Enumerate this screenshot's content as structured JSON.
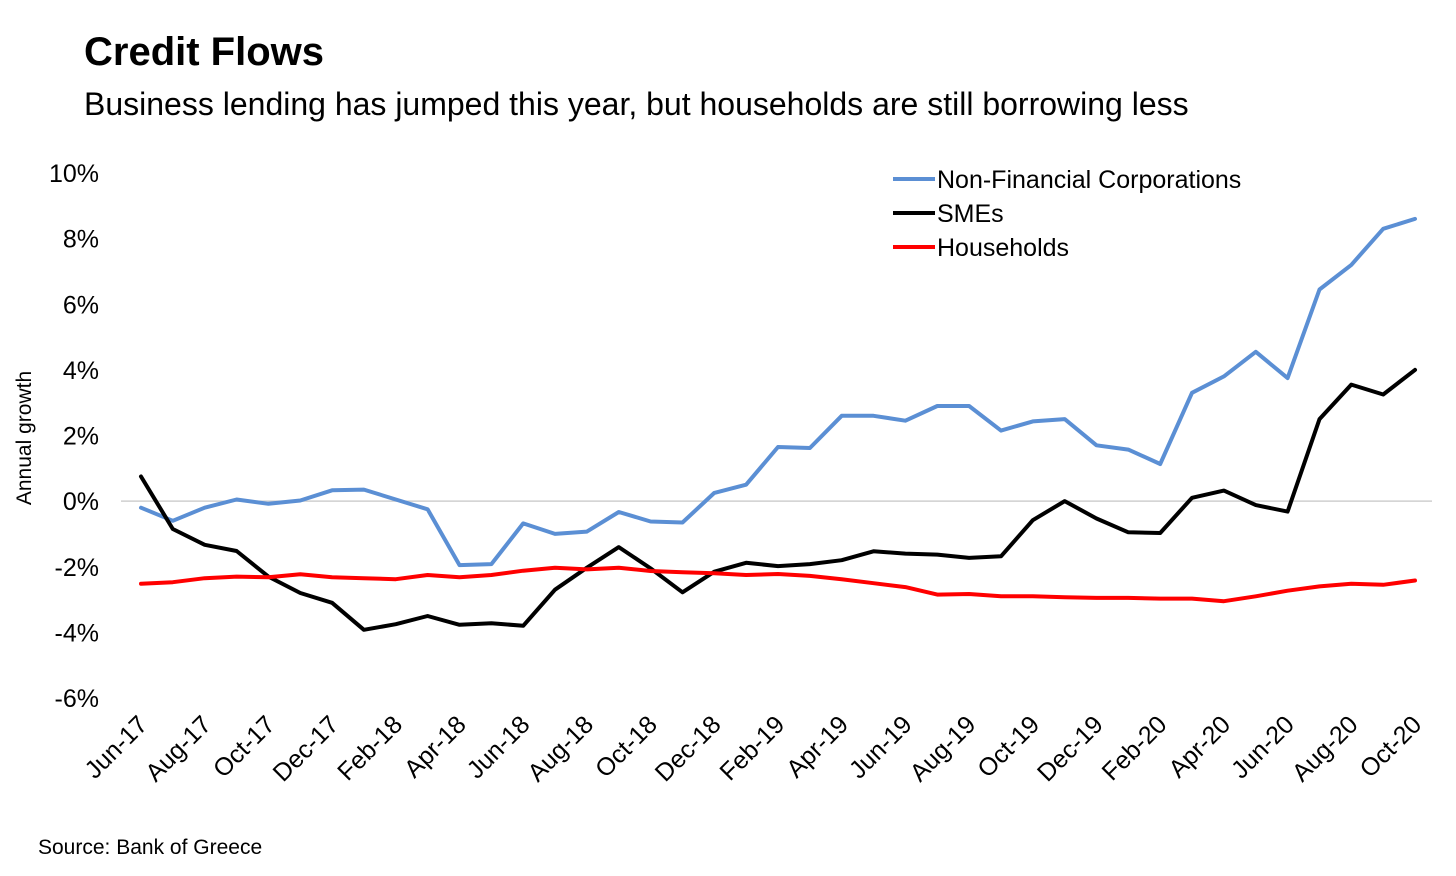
{
  "title": "Credit Flows",
  "subtitle": "Business lending has jumped this year, but households are still borrowing less",
  "source": "Source: Bank of Greece",
  "chart_data": {
    "type": "line",
    "ylabel": "Annual growth",
    "xlabel": "",
    "ylim": [
      -6,
      10
    ],
    "yticks": [
      -6,
      -4,
      -2,
      0,
      2,
      4,
      6,
      8,
      10
    ],
    "ytick_labels": [
      "-6%",
      "-4%",
      "-2%",
      "0%",
      "2%",
      "4%",
      "6%",
      "8%",
      "10%"
    ],
    "x": [
      "Jun-17",
      "Jul-17",
      "Aug-17",
      "Sep-17",
      "Oct-17",
      "Nov-17",
      "Dec-17",
      "Jan-18",
      "Feb-18",
      "Mar-18",
      "Apr-18",
      "May-18",
      "Jun-18",
      "Jul-18",
      "Aug-18",
      "Sep-18",
      "Oct-18",
      "Nov-18",
      "Dec-18",
      "Jan-19",
      "Feb-19",
      "Mar-19",
      "Apr-19",
      "May-19",
      "Jun-19",
      "Jul-19",
      "Aug-19",
      "Sep-19",
      "Oct-19",
      "Nov-19",
      "Dec-19",
      "Jan-20",
      "Feb-20",
      "Mar-20",
      "Apr-20",
      "May-20",
      "Jun-20",
      "Jul-20",
      "Aug-20",
      "Sep-20",
      "Oct-20"
    ],
    "xtick_labels": [
      "Jun-17",
      "Aug-17",
      "Oct-17",
      "Dec-17",
      "Feb-18",
      "Apr-18",
      "Jun-18",
      "Aug-18",
      "Oct-18",
      "Dec-18",
      "Feb-19",
      "Apr-19",
      "Jun-19",
      "Aug-19",
      "Oct-19",
      "Dec-19",
      "Feb-20",
      "Apr-20",
      "Jun-20",
      "Aug-20",
      "Oct-20"
    ],
    "grid": "zero line only",
    "legend_position": "top-right",
    "series": [
      {
        "name": "Non-Financial Corporations",
        "color": "#5b8fd4",
        "values": [
          -0.2,
          -0.6,
          -0.2,
          0.05,
          -0.08,
          0.02,
          0.33,
          0.35,
          0.05,
          -0.25,
          -1.95,
          -1.92,
          -0.68,
          -1.0,
          -0.93,
          -0.33,
          -0.62,
          -0.65,
          0.25,
          0.5,
          1.65,
          1.62,
          2.6,
          2.6,
          2.45,
          2.9,
          2.9,
          2.15,
          2.43,
          2.5,
          1.7,
          1.57,
          1.13,
          3.3,
          3.8,
          4.55,
          3.75,
          6.45,
          7.2,
          8.3,
          8.6
        ]
      },
      {
        "name": "SMEs",
        "color": "#000000",
        "values": [
          0.75,
          -0.85,
          -1.33,
          -1.52,
          -2.3,
          -2.8,
          -3.1,
          -3.92,
          -3.75,
          -3.5,
          -3.77,
          -3.72,
          -3.8,
          -2.7,
          -2.03,
          -1.4,
          -2.05,
          -2.78,
          -2.15,
          -1.88,
          -1.98,
          -1.92,
          -1.8,
          -1.53,
          -1.6,
          -1.63,
          -1.73,
          -1.68,
          -0.58,
          0.0,
          -0.53,
          -0.95,
          -0.97,
          0.1,
          0.32,
          -0.12,
          -0.32,
          2.5,
          3.55,
          3.25,
          4.0
        ]
      },
      {
        "name": "Households",
        "color": "#ff0000",
        "values": [
          -2.52,
          -2.47,
          -2.35,
          -2.3,
          -2.32,
          -2.23,
          -2.32,
          -2.35,
          -2.38,
          -2.25,
          -2.32,
          -2.25,
          -2.12,
          -2.03,
          -2.08,
          -2.03,
          -2.13,
          -2.17,
          -2.2,
          -2.25,
          -2.22,
          -2.28,
          -2.38,
          -2.5,
          -2.62,
          -2.85,
          -2.83,
          -2.9,
          -2.9,
          -2.93,
          -2.95,
          -2.95,
          -2.97,
          -2.97,
          -3.05,
          -2.9,
          -2.73,
          -2.6,
          -2.52,
          -2.55,
          -2.42
        ]
      }
    ]
  }
}
